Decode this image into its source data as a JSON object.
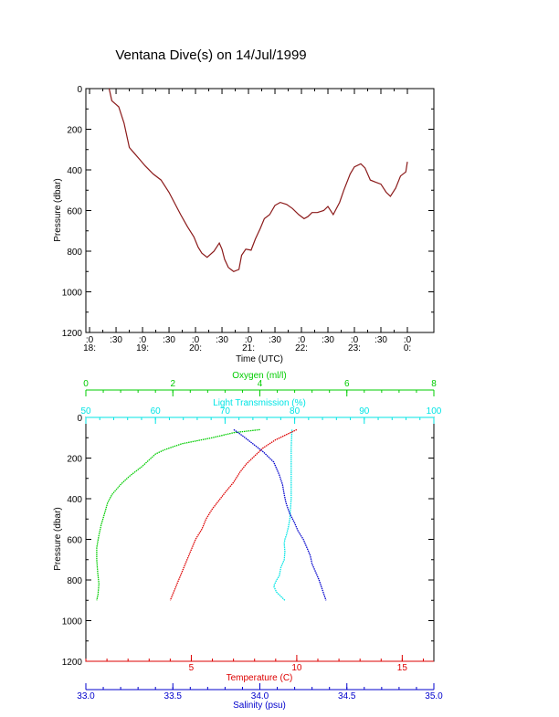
{
  "title": "Ventana Dive(s) on 14/Jul/1999",
  "chart_data": [
    {
      "type": "line",
      "name": "time-pressure",
      "xlabel": "Time (UTC)",
      "ylabel": "Pressure (dbar)",
      "ylim": [
        1200,
        0
      ],
      "xlim": [
        17.93,
        24.5
      ],
      "yticks": [
        0,
        200,
        400,
        600,
        800,
        1000,
        1200
      ],
      "xticks_major": [
        {
          "x": 18.0,
          "top": ":0",
          "bottom": "18:"
        },
        {
          "x": 18.5,
          "top": ":30",
          "bottom": ""
        },
        {
          "x": 19.0,
          "top": ":0",
          "bottom": "19:"
        },
        {
          "x": 19.5,
          "top": ":30",
          "bottom": ""
        },
        {
          "x": 20.0,
          "top": ":0",
          "bottom": "20:"
        },
        {
          "x": 20.5,
          "top": ":30",
          "bottom": ""
        },
        {
          "x": 21.0,
          "top": ":0",
          "bottom": "21:"
        },
        {
          "x": 21.5,
          "top": ":30",
          "bottom": ""
        },
        {
          "x": 22.0,
          "top": ":0",
          "bottom": "22:"
        },
        {
          "x": 22.5,
          "top": ":30",
          "bottom": ""
        },
        {
          "x": 23.0,
          "top": ":0",
          "bottom": "23:"
        },
        {
          "x": 23.5,
          "top": ":30",
          "bottom": ""
        },
        {
          "x": 24.0,
          "top": ":0",
          "bottom": "0:"
        }
      ],
      "series": [
        {
          "color": "#8b1a1a",
          "x": [
            18.37,
            18.42,
            18.55,
            18.65,
            18.75,
            18.85,
            18.95,
            19.05,
            19.2,
            19.35,
            19.5,
            19.6,
            19.72,
            19.85,
            19.97,
            20.05,
            20.12,
            20.22,
            20.35,
            20.45,
            20.5,
            20.55,
            20.62,
            20.72,
            20.82,
            20.87,
            20.95,
            21.05,
            21.13,
            21.22,
            21.3,
            21.4,
            21.5,
            21.6,
            21.72,
            21.83,
            21.95,
            22.05,
            22.12,
            22.2,
            22.3,
            22.42,
            22.5,
            22.6,
            22.72,
            22.8,
            22.92,
            23.0,
            23.12,
            23.2,
            23.3,
            23.4,
            23.5,
            23.6,
            23.68,
            23.78,
            23.87,
            23.97,
            24.0
          ],
          "y": [
            0,
            60,
            90,
            170,
            290,
            320,
            350,
            380,
            420,
            450,
            510,
            560,
            620,
            680,
            730,
            780,
            810,
            830,
            800,
            760,
            790,
            840,
            880,
            900,
            890,
            820,
            790,
            795,
            740,
            690,
            640,
            620,
            575,
            560,
            570,
            590,
            620,
            640,
            630,
            610,
            610,
            600,
            580,
            620,
            560,
            500,
            420,
            385,
            370,
            390,
            450,
            460,
            470,
            510,
            530,
            490,
            430,
            410,
            360
          ]
        }
      ]
    },
    {
      "type": "scatter",
      "name": "profile",
      "ylabel": "Pressure (dbar)",
      "ylim": [
        1200,
        0
      ],
      "yticks": [
        0,
        200,
        400,
        600,
        800,
        1000,
        1200
      ],
      "axes": {
        "oxygen": {
          "label": "Oxygen (ml/l)",
          "range": [
            0,
            8
          ],
          "ticks": [
            0,
            2,
            4,
            6,
            8
          ],
          "color": "#00cc00"
        },
        "transmission": {
          "label": "Light Transmission (%)",
          "range": [
            50,
            100
          ],
          "ticks": [
            50,
            60,
            70,
            80,
            90,
            100
          ],
          "color": "#00e5e5"
        },
        "temperature": {
          "label": "Temperature (C)",
          "range": [
            0,
            16.5
          ],
          "ticks": [
            5,
            10,
            15
          ],
          "color": "#dd0000"
        },
        "salinity": {
          "label": "Salinity (psu)",
          "range": [
            33.0,
            35.0
          ],
          "ticks": [
            "33.0",
            "33.5",
            "34.0",
            "34.5",
            "35.0"
          ],
          "color": "#0000cc"
        }
      },
      "series": [
        {
          "name": "Oxygen (ml/l)",
          "axis": "oxygen",
          "color": "#00cc00",
          "x": [
            4.0,
            3.4,
            2.9,
            2.2,
            1.8,
            1.6,
            1.3,
            1.0,
            0.8,
            0.6,
            0.5,
            0.42,
            0.35,
            0.3,
            0.25,
            0.25,
            0.27,
            0.3,
            0.28,
            0.25
          ],
          "y": [
            60,
            75,
            100,
            130,
            160,
            180,
            240,
            290,
            330,
            380,
            420,
            480,
            530,
            580,
            640,
            700,
            760,
            820,
            870,
            900
          ]
        },
        {
          "name": "Light Transmission (%)",
          "axis": "transmission",
          "color": "#00e5e5",
          "x": [
            79.6,
            79.5,
            79.5,
            79.5,
            79.5,
            79.4,
            79.3,
            79.1,
            78.8,
            78.6,
            78.5,
            78.6,
            78.5,
            78.0,
            77.8,
            77.4,
            77.0,
            77.4,
            78.0,
            78.6
          ],
          "y": [
            60,
            150,
            250,
            350,
            400,
            450,
            500,
            540,
            580,
            600,
            620,
            660,
            700,
            740,
            780,
            800,
            830,
            860,
            880,
            900
          ]
        },
        {
          "name": "Temperature (C)",
          "axis": "temperature",
          "color": "#dd0000",
          "x": [
            10.0,
            9.6,
            9.0,
            8.4,
            8.0,
            7.6,
            7.3,
            7.0,
            6.6,
            6.3,
            6.0,
            5.7,
            5.5,
            5.2,
            5.0,
            4.8,
            4.6,
            4.4,
            4.2,
            4.0
          ],
          "y": [
            60,
            80,
            110,
            150,
            190,
            230,
            270,
            320,
            370,
            410,
            450,
            500,
            550,
            600,
            650,
            700,
            750,
            800,
            850,
            900
          ]
        },
        {
          "name": "Salinity (psu)",
          "axis": "salinity",
          "color": "#0000cc",
          "x": [
            33.85,
            33.9,
            33.96,
            34.02,
            34.08,
            34.11,
            34.13,
            34.14,
            34.15,
            34.17,
            34.2,
            34.22,
            34.25,
            34.27,
            34.29,
            34.3,
            34.32,
            34.34,
            34.36,
            34.38
          ],
          "y": [
            60,
            90,
            130,
            170,
            220,
            280,
            330,
            380,
            420,
            470,
            520,
            560,
            600,
            640,
            680,
            720,
            760,
            800,
            850,
            900
          ]
        }
      ]
    }
  ]
}
